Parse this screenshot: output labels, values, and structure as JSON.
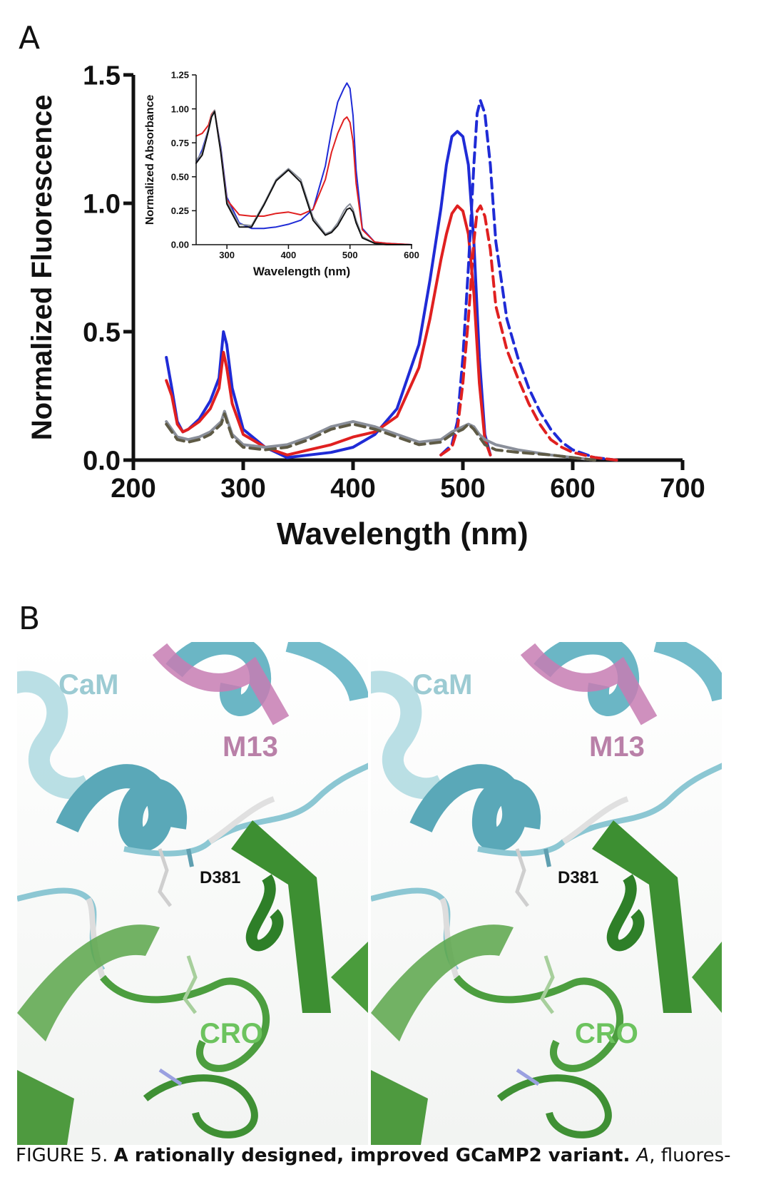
{
  "panels": {
    "a_letter": "A",
    "b_letter": "B"
  },
  "chart_data": [
    {
      "type": "line",
      "xlabel": "Wavelength (nm)",
      "ylabel": "Normalized Fluorescence",
      "xlim": [
        200,
        700
      ],
      "ylim": [
        0,
        1.5
      ],
      "xticks": [
        "200",
        "300",
        "400",
        "500",
        "600",
        "700"
      ],
      "yticks": [
        "0.0",
        "0.5",
        "1.0",
        "1.5"
      ],
      "colors": {
        "blue": "#1f2bd6",
        "red": "#e02020",
        "gray": "#8a8f9a",
        "olive": "#5e5a45"
      },
      "series": [
        {
          "color": "blue",
          "style": "solid",
          "x": [
            230,
            235,
            240,
            245,
            250,
            260,
            270,
            278,
            282,
            285,
            290,
            300,
            320,
            340,
            360,
            380,
            400,
            420,
            440,
            460,
            470,
            480,
            485,
            490,
            495,
            500,
            505,
            510,
            515,
            520,
            525
          ],
          "y": [
            0.4,
            0.28,
            0.15,
            0.11,
            0.12,
            0.16,
            0.23,
            0.32,
            0.5,
            0.45,
            0.28,
            0.12,
            0.05,
            0.01,
            0.02,
            0.03,
            0.05,
            0.1,
            0.2,
            0.45,
            0.7,
            0.98,
            1.15,
            1.26,
            1.28,
            1.26,
            1.15,
            0.85,
            0.4,
            0.1,
            0.02
          ]
        },
        {
          "color": "red",
          "style": "solid",
          "x": [
            230,
            235,
            240,
            245,
            250,
            260,
            270,
            278,
            282,
            285,
            290,
            300,
            320,
            340,
            360,
            380,
            400,
            420,
            440,
            460,
            470,
            480,
            485,
            490,
            495,
            500,
            505,
            510,
            515,
            520,
            525
          ],
          "y": [
            0.31,
            0.25,
            0.14,
            0.11,
            0.12,
            0.15,
            0.2,
            0.28,
            0.42,
            0.36,
            0.22,
            0.1,
            0.05,
            0.02,
            0.04,
            0.06,
            0.09,
            0.11,
            0.17,
            0.36,
            0.55,
            0.78,
            0.88,
            0.96,
            0.99,
            0.97,
            0.88,
            0.65,
            0.3,
            0.08,
            0.02
          ]
        },
        {
          "color": "blue",
          "style": "dashed",
          "x": [
            480,
            490,
            495,
            500,
            505,
            510,
            513,
            516,
            520,
            525,
            530,
            540,
            550,
            560,
            570,
            580,
            590,
            600,
            620,
            640
          ],
          "y": [
            0.02,
            0.06,
            0.15,
            0.4,
            0.75,
            1.15,
            1.35,
            1.4,
            1.35,
            1.15,
            0.85,
            0.55,
            0.4,
            0.28,
            0.19,
            0.12,
            0.07,
            0.04,
            0.01,
            0.0
          ]
        },
        {
          "color": "red",
          "style": "dashed",
          "x": [
            480,
            490,
            495,
            500,
            505,
            510,
            513,
            516,
            520,
            525,
            530,
            540,
            550,
            560,
            570,
            580,
            590,
            600,
            620,
            640
          ],
          "y": [
            0.02,
            0.05,
            0.12,
            0.3,
            0.55,
            0.85,
            0.97,
            0.99,
            0.95,
            0.82,
            0.6,
            0.43,
            0.32,
            0.22,
            0.14,
            0.08,
            0.05,
            0.03,
            0.01,
            0.0
          ]
        },
        {
          "color": "gray",
          "style": "solid",
          "x": [
            230,
            240,
            250,
            260,
            270,
            280,
            283,
            286,
            290,
            300,
            320,
            340,
            360,
            380,
            400,
            420,
            440,
            460,
            480,
            490,
            500,
            505,
            510,
            515,
            520,
            530,
            550,
            580,
            600,
            620
          ],
          "y": [
            0.15,
            0.09,
            0.08,
            0.09,
            0.11,
            0.15,
            0.19,
            0.15,
            0.1,
            0.06,
            0.05,
            0.06,
            0.09,
            0.13,
            0.15,
            0.13,
            0.1,
            0.07,
            0.08,
            0.11,
            0.13,
            0.14,
            0.13,
            0.1,
            0.08,
            0.06,
            0.04,
            0.02,
            0.01,
            0.0
          ]
        },
        {
          "color": "olive",
          "style": "dashed",
          "x": [
            230,
            240,
            250,
            260,
            270,
            280,
            283,
            286,
            290,
            300,
            320,
            340,
            360,
            380,
            400,
            420,
            440,
            460,
            480,
            490,
            500,
            505,
            510,
            515,
            520,
            530,
            550,
            580,
            600,
            620
          ],
          "y": [
            0.14,
            0.08,
            0.07,
            0.08,
            0.1,
            0.14,
            0.18,
            0.14,
            0.09,
            0.05,
            0.04,
            0.05,
            0.08,
            0.12,
            0.14,
            0.12,
            0.09,
            0.06,
            0.07,
            0.1,
            0.12,
            0.14,
            0.12,
            0.09,
            0.06,
            0.04,
            0.03,
            0.02,
            0.01,
            0.0
          ]
        }
      ]
    },
    {
      "type": "line",
      "xlabel": "Wavelength (nm)",
      "ylabel": "Normalized Absorbance",
      "xlim": [
        250,
        600
      ],
      "ylim": [
        0,
        1.25
      ],
      "xticks": [
        "300",
        "400",
        "500",
        "600"
      ],
      "yticks": [
        "0.00",
        "0.25",
        "0.50",
        "0.75",
        "1.00",
        "1.25"
      ],
      "series": [
        {
          "color": "blue",
          "style": "solid",
          "x": [
            250,
            260,
            270,
            275,
            280,
            290,
            300,
            320,
            340,
            360,
            380,
            400,
            420,
            440,
            460,
            470,
            480,
            490,
            495,
            500,
            505,
            510,
            520,
            540,
            560,
            600
          ],
          "y": [
            0.6,
            0.7,
            0.85,
            0.95,
            0.98,
            0.72,
            0.35,
            0.16,
            0.12,
            0.12,
            0.13,
            0.15,
            0.18,
            0.26,
            0.58,
            0.84,
            1.05,
            1.15,
            1.19,
            1.15,
            0.95,
            0.55,
            0.12,
            0.02,
            0.01,
            0.0
          ]
        },
        {
          "color": "red",
          "style": "solid",
          "x": [
            250,
            260,
            270,
            275,
            280,
            290,
            300,
            320,
            340,
            360,
            380,
            400,
            420,
            440,
            460,
            470,
            480,
            490,
            495,
            500,
            505,
            510,
            520,
            540,
            560,
            600
          ],
          "y": [
            0.8,
            0.82,
            0.88,
            0.96,
            0.99,
            0.7,
            0.33,
            0.22,
            0.21,
            0.21,
            0.23,
            0.24,
            0.22,
            0.26,
            0.48,
            0.68,
            0.82,
            0.92,
            0.94,
            0.9,
            0.76,
            0.45,
            0.11,
            0.02,
            0.01,
            0.0
          ]
        },
        {
          "color": "gray",
          "style": "solid",
          "x": [
            250,
            260,
            270,
            275,
            280,
            290,
            300,
            320,
            340,
            360,
            380,
            400,
            420,
            440,
            460,
            470,
            480,
            490,
            495,
            500,
            505,
            510,
            520,
            540,
            560,
            600
          ],
          "y": [
            0.62,
            0.68,
            0.85,
            0.95,
            0.99,
            0.7,
            0.32,
            0.15,
            0.14,
            0.3,
            0.48,
            0.56,
            0.48,
            0.2,
            0.08,
            0.1,
            0.16,
            0.25,
            0.28,
            0.3,
            0.26,
            0.18,
            0.06,
            0.01,
            0.0,
            0.0
          ]
        },
        {
          "color": "black",
          "style": "solid",
          "x": [
            250,
            260,
            270,
            275,
            280,
            290,
            300,
            320,
            340,
            360,
            380,
            400,
            420,
            440,
            460,
            470,
            480,
            490,
            495,
            500,
            505,
            510,
            520,
            540,
            560,
            600
          ],
          "y": [
            0.6,
            0.66,
            0.84,
            0.94,
            0.98,
            0.68,
            0.3,
            0.13,
            0.13,
            0.29,
            0.47,
            0.55,
            0.46,
            0.18,
            0.07,
            0.09,
            0.14,
            0.22,
            0.26,
            0.27,
            0.24,
            0.16,
            0.05,
            0.01,
            0.0,
            0.0
          ]
        }
      ]
    }
  ],
  "structure_labels": {
    "cam": "CaM",
    "m13": "M13",
    "d381": "D381",
    "cro": "CRO"
  },
  "caption": {
    "prefix": "FIGURE 5. ",
    "title": "A rationally designed, improved GCaMP2 variant. ",
    "panel_ref": "A",
    "text": ", fluores-"
  }
}
